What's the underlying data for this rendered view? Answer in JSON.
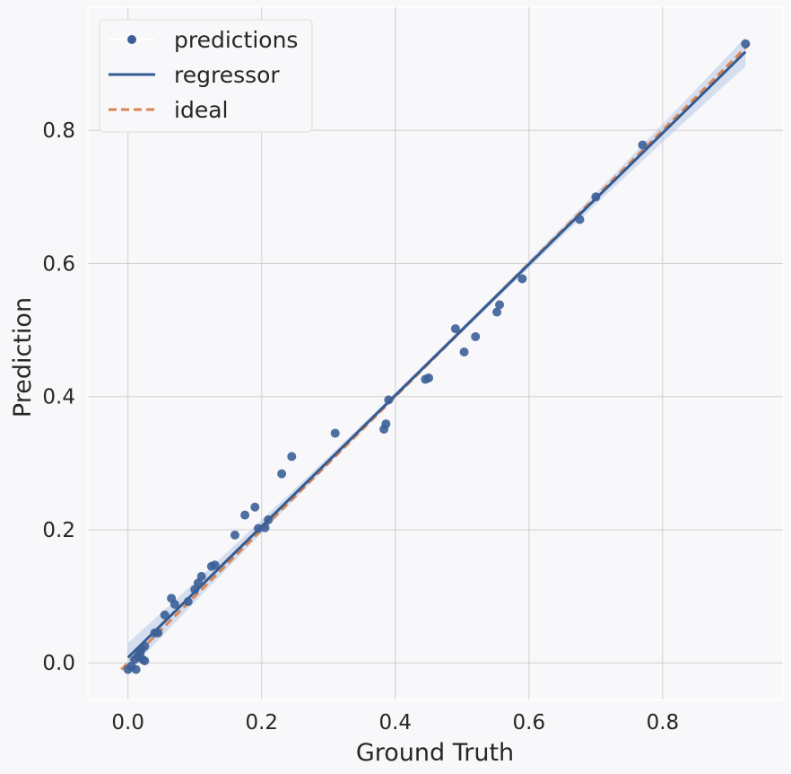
{
  "chart_data": {
    "type": "scatter",
    "title": "",
    "xlabel": "Ground Truth",
    "ylabel": "Prediction",
    "xlim": [
      -0.06,
      0.98
    ],
    "ylim": [
      -0.055,
      0.985
    ],
    "xticks": [
      0.0,
      0.2,
      0.4,
      0.6,
      0.8
    ],
    "yticks": [
      0.0,
      0.2,
      0.4,
      0.6,
      0.8
    ],
    "xtick_labels": [
      "0.0",
      "0.2",
      "0.4",
      "0.6",
      "0.8"
    ],
    "ytick_labels": [
      "0.0",
      "0.2",
      "0.4",
      "0.6",
      "0.8"
    ],
    "grid": true,
    "legend_position": "top-left",
    "series": [
      {
        "name": "predictions",
        "kind": "scatter",
        "color": "#3b5f97",
        "points": [
          [
            0.0,
            -0.01
          ],
          [
            0.005,
            -0.005
          ],
          [
            0.01,
            0.005
          ],
          [
            0.012,
            -0.01
          ],
          [
            0.015,
            0.01
          ],
          [
            0.018,
            0.015
          ],
          [
            0.02,
            0.02
          ],
          [
            0.022,
            0.005
          ],
          [
            0.025,
            0.025
          ],
          [
            0.025,
            0.003
          ],
          [
            0.04,
            0.045
          ],
          [
            0.045,
            0.045
          ],
          [
            0.055,
            0.072
          ],
          [
            0.065,
            0.097
          ],
          [
            0.07,
            0.088
          ],
          [
            0.09,
            0.092
          ],
          [
            0.1,
            0.11
          ],
          [
            0.105,
            0.12
          ],
          [
            0.11,
            0.13
          ],
          [
            0.125,
            0.145
          ],
          [
            0.13,
            0.147
          ],
          [
            0.16,
            0.192
          ],
          [
            0.175,
            0.222
          ],
          [
            0.19,
            0.234
          ],
          [
            0.195,
            0.202
          ],
          [
            0.205,
            0.203
          ],
          [
            0.21,
            0.215
          ],
          [
            0.23,
            0.284
          ],
          [
            0.245,
            0.31
          ],
          [
            0.31,
            0.345
          ],
          [
            0.383,
            0.351
          ],
          [
            0.386,
            0.359
          ],
          [
            0.39,
            0.395
          ],
          [
            0.445,
            0.426
          ],
          [
            0.45,
            0.428
          ],
          [
            0.49,
            0.502
          ],
          [
            0.503,
            0.467
          ],
          [
            0.52,
            0.49
          ],
          [
            0.552,
            0.527
          ],
          [
            0.556,
            0.538
          ],
          [
            0.59,
            0.577
          ],
          [
            0.676,
            0.666
          ],
          [
            0.7,
            0.7
          ],
          [
            0.77,
            0.778
          ],
          [
            0.924,
            0.93
          ]
        ]
      },
      {
        "name": "regressor",
        "kind": "line",
        "color": "#345b92",
        "x": [
          0.0,
          0.924
        ],
        "y": [
          0.008,
          0.918
        ],
        "ci_color": "#b7c8e6"
      },
      {
        "name": "ideal",
        "kind": "dashed-line",
        "color": "#dd8452",
        "x": [
          -0.01,
          0.93
        ],
        "y": [
          -0.01,
          0.93
        ]
      }
    ]
  },
  "legend": {
    "items": [
      {
        "label": "predictions"
      },
      {
        "label": "regressor"
      },
      {
        "label": "ideal"
      }
    ]
  }
}
